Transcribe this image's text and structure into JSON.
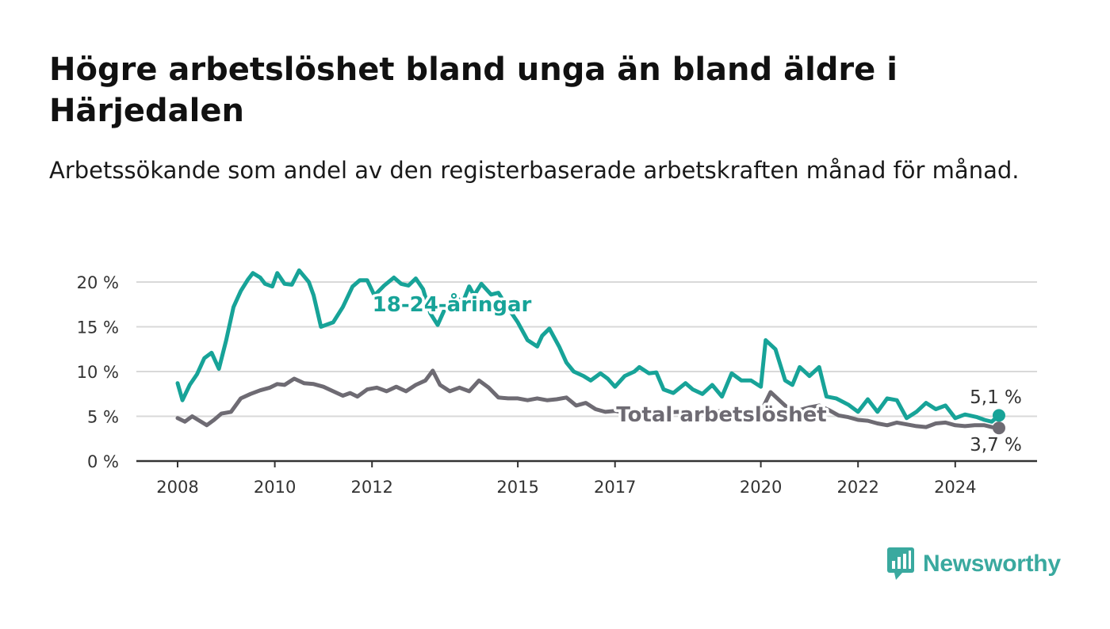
{
  "title": "Högre arbetslöshet bland unga än bland äldre i Härjedalen",
  "subtitle": "Arbetssökande som andel av den registerbaserade arbetskraften månad för månad.",
  "brand": {
    "name": "Newsworthy",
    "icon": "bar-chart-speech-bubble-icon",
    "color": "#3aa99f"
  },
  "chart_data": {
    "type": "line",
    "title": "",
    "xlabel": "",
    "ylabel": "",
    "xlim": [
      2008.0,
      2025.75
    ],
    "ylim": [
      0,
      20
    ],
    "grid": true,
    "legend": "inline-labels",
    "x_ticks": [
      2008,
      2010,
      2012,
      2015,
      2017,
      2020,
      2022,
      2024
    ],
    "x_tick_labels": [
      "2008",
      "2010",
      "2012",
      "2015",
      "2017",
      "2020",
      "2022",
      "2024"
    ],
    "y_ticks": [
      0,
      5,
      10,
      15,
      20
    ],
    "y_tick_labels": [
      "0 %",
      "5 %",
      "10 %",
      "15 %",
      "20 %"
    ],
    "series": [
      {
        "name": "18-24-åringar",
        "color": "#17a398",
        "end_label": "5,1 %",
        "x": [
          2008.0,
          2008.1,
          2008.25,
          2008.4,
          2008.55,
          2008.7,
          2008.85,
          2009.0,
          2009.15,
          2009.3,
          2009.45,
          2009.55,
          2009.7,
          2009.8,
          2009.95,
          2010.05,
          2010.2,
          2010.35,
          2010.5,
          2010.7,
          2010.8,
          2010.95,
          2011.1,
          2011.2,
          2011.4,
          2011.6,
          2011.75,
          2011.9,
          2012.05,
          2012.25,
          2012.45,
          2012.6,
          2012.75,
          2012.9,
          2013.05,
          2013.2,
          2013.35,
          2013.5,
          2013.7,
          2013.85,
          2014.0,
          2014.1,
          2014.25,
          2014.45,
          2014.6,
          2014.75,
          2015.0,
          2015.2,
          2015.4,
          2015.5,
          2015.65,
          2015.85,
          2016.0,
          2016.15,
          2016.35,
          2016.5,
          2016.7,
          2016.85,
          2017.0,
          2017.2,
          2017.4,
          2017.5,
          2017.7,
          2017.85,
          2018.0,
          2018.2,
          2018.45,
          2018.6,
          2018.8,
          2019.0,
          2019.2,
          2019.4,
          2019.6,
          2019.8,
          2020.0,
          2020.1,
          2020.3,
          2020.5,
          2020.65,
          2020.8,
          2021.0,
          2021.2,
          2021.35,
          2021.55,
          2021.8,
          2022.0,
          2022.2,
          2022.4,
          2022.6,
          2022.8,
          2023.0,
          2023.2,
          2023.4,
          2023.6,
          2023.8,
          2024.0,
          2024.2,
          2024.45,
          2024.6,
          2024.75,
          2024.9
        ],
        "values": [
          8.7,
          6.8,
          8.5,
          9.7,
          11.5,
          12.1,
          10.3,
          13.5,
          17.2,
          19.0,
          20.3,
          21.0,
          20.5,
          19.8,
          19.5,
          21.0,
          19.8,
          19.7,
          21.3,
          20.0,
          18.5,
          15.0,
          15.3,
          15.5,
          17.2,
          19.5,
          20.2,
          20.2,
          18.5,
          19.6,
          20.5,
          19.8,
          19.6,
          20.4,
          19.2,
          16.5,
          15.2,
          17.0,
          18.7,
          17.5,
          19.5,
          18.5,
          19.8,
          18.6,
          18.8,
          17.5,
          15.5,
          13.5,
          12.8,
          14.0,
          14.8,
          12.8,
          11.0,
          10.0,
          9.5,
          9.0,
          9.8,
          9.2,
          8.3,
          9.5,
          10.0,
          10.5,
          9.8,
          9.9,
          8.0,
          7.6,
          8.7,
          8.0,
          7.5,
          8.5,
          7.2,
          9.8,
          9.0,
          9.0,
          8.3,
          13.5,
          12.5,
          9.0,
          8.5,
          10.5,
          9.5,
          10.5,
          7.2,
          7.0,
          6.3,
          5.5,
          6.9,
          5.5,
          7.0,
          6.8,
          4.8,
          5.5,
          6.5,
          5.8,
          6.2,
          4.8,
          5.2,
          4.9,
          4.6,
          4.4,
          5.1
        ]
      },
      {
        "name": "Total arbetslöshet",
        "color": "#6e6b73",
        "end_label": "3,7 %",
        "x": [
          2008.0,
          2008.15,
          2008.3,
          2008.45,
          2008.6,
          2008.75,
          2008.9,
          2009.1,
          2009.3,
          2009.5,
          2009.7,
          2009.9,
          2010.05,
          2010.2,
          2010.4,
          2010.6,
          2010.8,
          2011.0,
          2011.2,
          2011.4,
          2011.55,
          2011.7,
          2011.9,
          2012.1,
          2012.3,
          2012.5,
          2012.7,
          2012.9,
          2013.1,
          2013.25,
          2013.4,
          2013.6,
          2013.8,
          2014.0,
          2014.2,
          2014.4,
          2014.6,
          2014.8,
          2015.0,
          2015.2,
          2015.4,
          2015.6,
          2015.8,
          2016.0,
          2016.2,
          2016.4,
          2016.6,
          2016.8,
          2017.0,
          2017.2,
          2017.5,
          2017.8,
          2018.0,
          2018.3,
          2018.6,
          2018.9,
          2019.2,
          2019.5,
          2019.8,
          2020.0,
          2020.2,
          2020.4,
          2020.6,
          2020.8,
          2021.0,
          2021.2,
          2021.4,
          2021.6,
          2021.8,
          2022.0,
          2022.2,
          2022.4,
          2022.6,
          2022.8,
          2023.0,
          2023.2,
          2023.4,
          2023.6,
          2023.8,
          2024.0,
          2024.2,
          2024.4,
          2024.6,
          2024.75,
          2024.9
        ],
        "values": [
          4.8,
          4.4,
          5.0,
          4.5,
          4.0,
          4.6,
          5.3,
          5.5,
          7.0,
          7.5,
          7.9,
          8.2,
          8.6,
          8.5,
          9.2,
          8.7,
          8.6,
          8.3,
          7.8,
          7.3,
          7.6,
          7.2,
          8.0,
          8.2,
          7.8,
          8.3,
          7.8,
          8.5,
          9.0,
          10.1,
          8.5,
          7.8,
          8.2,
          7.8,
          9.0,
          8.2,
          7.1,
          7.0,
          7.0,
          6.8,
          7.0,
          6.8,
          6.9,
          7.1,
          6.2,
          6.5,
          5.8,
          5.5,
          5.6,
          5.4,
          5.4,
          5.5,
          5.4,
          5.5,
          5.3,
          5.4,
          5.6,
          5.5,
          5.5,
          5.5,
          7.7,
          6.7,
          5.7,
          5.7,
          6.0,
          6.2,
          5.7,
          5.1,
          4.9,
          4.6,
          4.5,
          4.2,
          4.0,
          4.3,
          4.1,
          3.9,
          3.8,
          4.2,
          4.3,
          4.0,
          3.9,
          4.0,
          4.0,
          3.8,
          3.7
        ]
      }
    ]
  }
}
